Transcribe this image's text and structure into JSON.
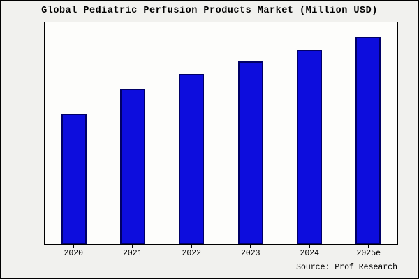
{
  "title": "Global Pediatric Perfusion Products Market (Million USD)",
  "source": "Source: Prof Research",
  "colors": {
    "bar_fill": "#0d0ddd",
    "bar_border": "#000066",
    "background": "#f1f1ee",
    "plot_background": "#fdfdfb"
  },
  "chart_data": {
    "type": "bar",
    "title": "Global Pediatric Perfusion Products Market (Million USD)",
    "categories": [
      "2020",
      "2021",
      "2022",
      "2023",
      "2024",
      "2025e"
    ],
    "values": [
      63,
      75,
      82,
      88,
      94,
      100
    ],
    "xlabel": "",
    "ylabel": "",
    "ylim": [
      0,
      107
    ],
    "grid": false,
    "legend": false,
    "y_axis_tick_labels_shown": false
  }
}
